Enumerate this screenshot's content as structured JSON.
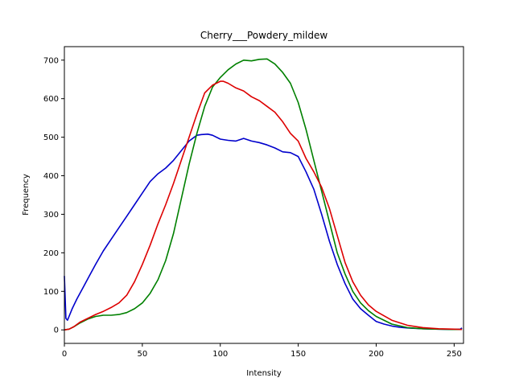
{
  "chart_data": {
    "type": "line",
    "title": "Cherry___Powdery_mildew",
    "xlabel": "Intensity",
    "ylabel": "Frequency",
    "xlim": [
      0,
      256
    ],
    "ylim": [
      -35,
      735
    ],
    "xticks": [
      0,
      50,
      100,
      150,
      200,
      250
    ],
    "yticks": [
      0,
      100,
      200,
      300,
      400,
      500,
      600,
      700
    ],
    "grid": false,
    "legend": "none",
    "series": [
      {
        "color": "#0000cc",
        "x": [
          0,
          1,
          2,
          3,
          5,
          8,
          12,
          16,
          20,
          25,
          30,
          35,
          40,
          45,
          50,
          55,
          60,
          65,
          70,
          75,
          80,
          85,
          88,
          92,
          95,
          100,
          105,
          110,
          115,
          120,
          125,
          130,
          135,
          140,
          145,
          150,
          155,
          160,
          165,
          170,
          175,
          180,
          185,
          190,
          195,
          200,
          205,
          210,
          215,
          220,
          225,
          230,
          240,
          250,
          254,
          255
        ],
        "y": [
          140,
          30,
          25,
          35,
          55,
          80,
          110,
          140,
          170,
          205,
          235,
          265,
          295,
          325,
          355,
          385,
          405,
          420,
          440,
          465,
          490,
          505,
          507,
          508,
          505,
          495,
          492,
          490,
          497,
          490,
          486,
          480,
          472,
          462,
          460,
          450,
          410,
          365,
          300,
          230,
          170,
          120,
          80,
          55,
          38,
          22,
          15,
          10,
          7,
          5,
          4,
          3,
          2,
          1,
          2,
          5
        ]
      },
      {
        "color": "#008000",
        "x": [
          0,
          3,
          6,
          10,
          15,
          20,
          25,
          30,
          35,
          40,
          45,
          50,
          55,
          60,
          65,
          70,
          75,
          80,
          85,
          90,
          95,
          100,
          105,
          110,
          115,
          120,
          125,
          130,
          135,
          140,
          145,
          150,
          155,
          160,
          165,
          170,
          175,
          180,
          185,
          190,
          195,
          200,
          210,
          220,
          230,
          240,
          250,
          255
        ],
        "y": [
          0,
          2,
          8,
          18,
          28,
          35,
          38,
          38,
          40,
          45,
          55,
          70,
          95,
          130,
          180,
          250,
          340,
          430,
          510,
          580,
          630,
          655,
          675,
          690,
          700,
          698,
          702,
          703,
          690,
          668,
          640,
          590,
          520,
          440,
          360,
          280,
          200,
          145,
          100,
          70,
          50,
          35,
          15,
          6,
          3,
          2,
          1,
          1
        ]
      },
      {
        "color": "#dd0000",
        "x": [
          0,
          3,
          6,
          10,
          15,
          20,
          25,
          30,
          35,
          40,
          45,
          50,
          55,
          60,
          65,
          70,
          75,
          80,
          85,
          90,
          95,
          100,
          102,
          105,
          110,
          115,
          120,
          125,
          130,
          135,
          140,
          145,
          150,
          155,
          160,
          165,
          170,
          175,
          180,
          185,
          190,
          195,
          200,
          210,
          220,
          230,
          240,
          250,
          255
        ],
        "y": [
          0,
          2,
          8,
          20,
          30,
          40,
          48,
          58,
          70,
          90,
          125,
          170,
          220,
          275,
          325,
          380,
          440,
          500,
          560,
          615,
          635,
          645,
          645,
          640,
          628,
          620,
          605,
          595,
          580,
          565,
          540,
          510,
          490,
          445,
          410,
          370,
          315,
          245,
          175,
          125,
          90,
          65,
          48,
          25,
          12,
          6,
          3,
          2,
          1
        ]
      }
    ]
  }
}
